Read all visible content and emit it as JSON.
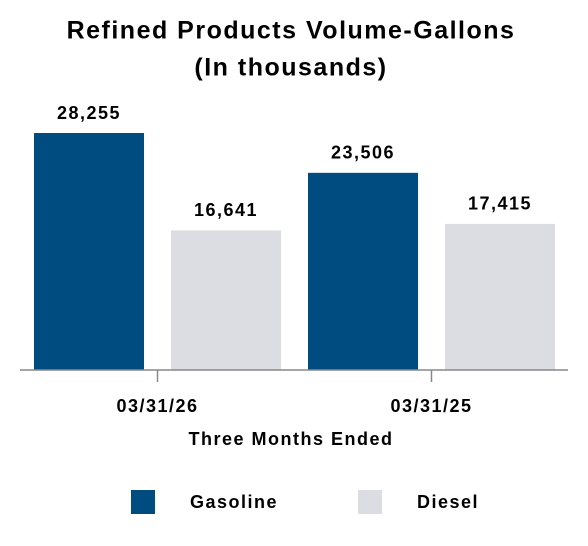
{
  "chart_data": {
    "type": "bar",
    "title": "Refined Products Volume-Gallons",
    "subtitle": "(In thousands)",
    "categories": [
      "03/31/26",
      "03/31/25"
    ],
    "x_label": "Three Months Ended",
    "series": [
      {
        "name": "Gasoline",
        "color": "#004b7f",
        "values": [
          28255,
          23506
        ],
        "value_labels": [
          "28,255",
          "23,506"
        ]
      },
      {
        "name": "Diesel",
        "color": "#dcdde2",
        "values": [
          16641,
          17415
        ],
        "value_labels": [
          "16,641",
          "17,415"
        ]
      }
    ],
    "legend": "bottom"
  }
}
